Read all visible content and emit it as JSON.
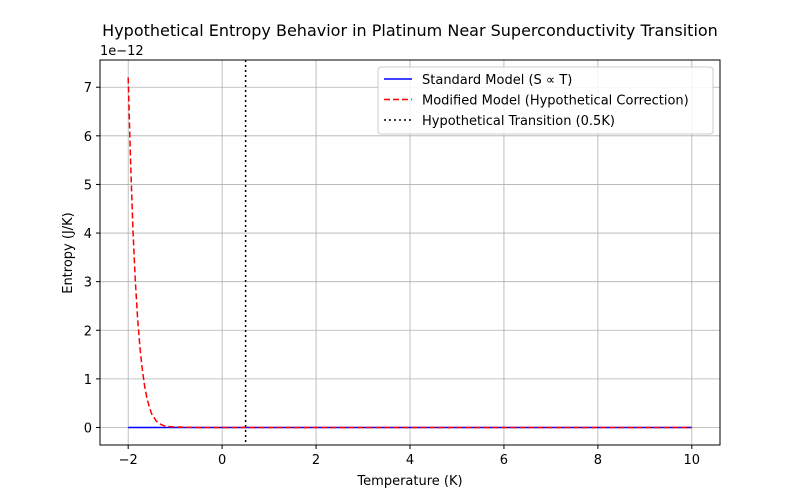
{
  "chart_data": {
    "type": "line",
    "title": "Hypothetical Entropy Behavior in Platinum Near Superconductivity Transition",
    "xlabel": "Temperature (K)",
    "ylabel": "Entropy (J/K)",
    "xlim": [
      -2.6,
      10.6
    ],
    "ylim": [
      -0.36,
      7.56
    ],
    "y_offset_text": "1e−12",
    "x_ticks": [
      -2,
      0,
      2,
      4,
      6,
      8,
      10
    ],
    "x_tick_labels": [
      "−2",
      "0",
      "2",
      "4",
      "6",
      "8",
      "10"
    ],
    "y_ticks": [
      0,
      1,
      2,
      3,
      4,
      5,
      6,
      7
    ],
    "y_tick_labels": [
      "0",
      "1",
      "2",
      "3",
      "4",
      "5",
      "6",
      "7"
    ],
    "grid": true,
    "legend_position": "top-right",
    "series": [
      {
        "name": "Standard Model (S ∝ T)",
        "color": "#0000ff",
        "style": "solid",
        "x": [
          -2,
          10
        ],
        "y": [
          0,
          0
        ]
      },
      {
        "name": "Modified Model (Hypothetical Correction)",
        "color": "#ff0000",
        "style": "dashed",
        "x": [
          -2.0,
          -1.95,
          -1.9,
          -1.85,
          -1.8,
          -1.75,
          -1.7,
          -1.65,
          -1.6,
          -1.55,
          -1.5,
          -1.4,
          -1.3,
          -1.2,
          -1.0,
          -0.5,
          0,
          2,
          4,
          6,
          8,
          10
        ],
        "y": [
          7.2,
          5.5,
          4.1,
          3.05,
          2.25,
          1.65,
          1.2,
          0.85,
          0.6,
          0.42,
          0.28,
          0.13,
          0.06,
          0.025,
          0.01,
          0.0,
          0.0,
          0.0,
          0.0,
          0.0,
          0.0,
          0.0
        ]
      }
    ],
    "vlines": [
      {
        "name": "Hypothetical Transition (0.5K)",
        "x": 0.5,
        "color": "#000000",
        "style": "dotted"
      }
    ]
  }
}
